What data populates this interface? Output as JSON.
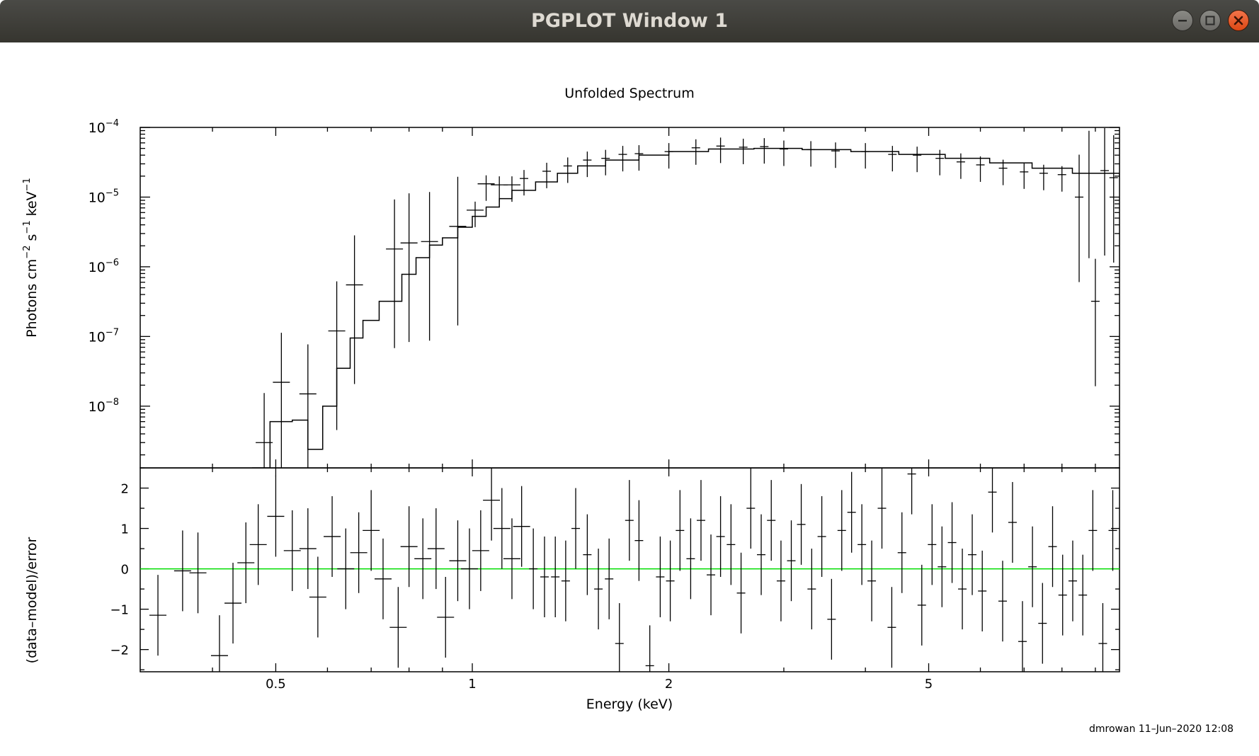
{
  "window": {
    "title": "PGPLOT Window 1",
    "controls": {
      "minimize": "minimize-icon",
      "maximize": "maximize-icon",
      "close": "close-icon"
    }
  },
  "footer": {
    "stamp": "dmrowan 11–Jun–2020 12:08"
  },
  "chart_data": [
    {
      "panel": "top",
      "type": "scatter",
      "title": "Unfolded Spectrum",
      "xlabel": "",
      "ylabel_parts": [
        "Photons cm",
        "−2",
        " s",
        "−1",
        " keV",
        "−1"
      ],
      "x_scale": "log",
      "y_scale": "log",
      "xlim": [
        0.31,
        9.8
      ],
      "ylim": [
        1.3e-09,
        0.0001
      ],
      "y_tick_exponents": [
        "−4",
        "−5",
        "−6",
        "−7",
        "−8"
      ],
      "grid": false,
      "series": [
        {
          "kind": "data",
          "points": [
            [
              0.48,
              3e-09
            ],
            [
              0.51,
              2.2e-08
            ],
            [
              0.56,
              1.5e-08
            ],
            [
              0.62,
              1.2e-07
            ],
            [
              0.66,
              5.5e-07
            ],
            [
              0.76,
              1.8e-06
            ],
            [
              0.8,
              2.2e-06
            ],
            [
              0.86,
              2.3e-06
            ],
            [
              0.95,
              3.8e-06
            ],
            [
              1.01,
              6.5e-06
            ],
            [
              1.05,
              1.55e-05
            ],
            [
              1.1,
              1.5e-05
            ],
            [
              1.15,
              1.5e-05
            ],
            [
              1.2,
              1.85e-05
            ],
            [
              1.3,
              2.35e-05
            ],
            [
              1.4,
              2.8e-05
            ],
            [
              1.5,
              3.4e-05
            ],
            [
              1.6,
              3.6e-05
            ],
            [
              1.7,
              4.1e-05
            ],
            [
              1.8,
              4.2e-05
            ],
            [
              2.0,
              4.5e-05
            ],
            [
              2.2,
              5.1e-05
            ],
            [
              2.4,
              5.4e-05
            ],
            [
              2.6,
              5.2e-05
            ],
            [
              2.8,
              5.3e-05
            ],
            [
              3.0,
              4.9e-05
            ],
            [
              3.3,
              4.8e-05
            ],
            [
              3.6,
              4.6e-05
            ],
            [
              4.0,
              4.5e-05
            ],
            [
              4.4,
              4.1e-05
            ],
            [
              4.8,
              4e-05
            ],
            [
              5.2,
              3.6e-05
            ],
            [
              5.6,
              3.2e-05
            ],
            [
              6.0,
              2.9e-05
            ],
            [
              6.5,
              2.6e-05
            ],
            [
              7.0,
              2.3e-05
            ],
            [
              7.5,
              2.2e-05
            ],
            [
              8.0,
              2.1e-05
            ],
            [
              8.5,
              1e-05
            ],
            [
              8.8,
              2.2e-05
            ],
            [
              9.0,
              3.2e-07
            ],
            [
              9.3,
              2.4e-05
            ],
            [
              9.6,
              1.9e-05
            ]
          ]
        },
        {
          "kind": "model",
          "steps": [
            [
              0.46,
              1.3e-09
            ],
            [
              0.49,
              6e-09
            ],
            [
              0.53,
              6.3e-09
            ],
            [
              0.56,
              2.4e-09
            ],
            [
              0.59,
              1e-08
            ],
            [
              0.62,
              3.5e-08
            ],
            [
              0.65,
              9.5e-08
            ],
            [
              0.68,
              1.7e-07
            ],
            [
              0.72,
              3.2e-07
            ],
            [
              0.78,
              7.8e-07
            ],
            [
              0.82,
              1.35e-06
            ],
            [
              0.86,
              2.05e-06
            ],
            [
              0.9,
              2.6e-06
            ],
            [
              0.95,
              3.7e-06
            ],
            [
              1.0,
              5.3e-06
            ],
            [
              1.05,
              7.2e-06
            ],
            [
              1.1,
              9.5e-06
            ],
            [
              1.15,
              1.25e-05
            ],
            [
              1.25,
              1.65e-05
            ],
            [
              1.35,
              2.2e-05
            ],
            [
              1.45,
              2.8e-05
            ],
            [
              1.6,
              3.4e-05
            ],
            [
              1.8,
              4e-05
            ],
            [
              2.0,
              4.5e-05
            ],
            [
              2.3,
              4.9e-05
            ],
            [
              2.7,
              5e-05
            ],
            [
              3.2,
              4.8e-05
            ],
            [
              3.8,
              4.5e-05
            ],
            [
              4.5,
              4.1e-05
            ],
            [
              5.3,
              3.6e-05
            ],
            [
              6.2,
              3.1e-05
            ],
            [
              7.2,
              2.6e-05
            ],
            [
              8.3,
              2.2e-05
            ],
            [
              9.8,
              1.9e-05
            ]
          ]
        }
      ]
    },
    {
      "panel": "bottom",
      "type": "scatter",
      "xlabel": "Energy (keV)",
      "ylabel": "(data–model)/error",
      "x_scale": "log",
      "xlim": [
        0.31,
        9.8
      ],
      "ylim": [
        -2.55,
        2.5
      ],
      "x_ticks": [
        {
          "value": 0.5,
          "label": "0.5"
        },
        {
          "value": 1,
          "label": "1"
        },
        {
          "value": 2,
          "label": "2"
        },
        {
          "value": 5,
          "label": "5"
        }
      ],
      "y_ticks": [
        {
          "value": 2,
          "label": "2"
        },
        {
          "value": 1,
          "label": "1"
        },
        {
          "value": 0,
          "label": "0"
        },
        {
          "value": -1,
          "label": "−1"
        },
        {
          "value": -2,
          "label": "−2"
        }
      ],
      "zero_line_color": "#00dd00",
      "grid": false,
      "points": [
        [
          0.33,
          -1.15
        ],
        [
          0.36,
          -0.05
        ],
        [
          0.38,
          -0.1
        ],
        [
          0.41,
          -2.15
        ],
        [
          0.43,
          -0.85
        ],
        [
          0.45,
          0.15
        ],
        [
          0.47,
          0.6
        ],
        [
          0.5,
          1.3
        ],
        [
          0.53,
          0.45
        ],
        [
          0.56,
          0.5
        ],
        [
          0.58,
          -0.7
        ],
        [
          0.61,
          0.8
        ],
        [
          0.64,
          0.0
        ],
        [
          0.67,
          0.4
        ],
        [
          0.7,
          0.95
        ],
        [
          0.73,
          -0.25
        ],
        [
          0.77,
          -1.45
        ],
        [
          0.8,
          0.55
        ],
        [
          0.84,
          0.25
        ],
        [
          0.88,
          0.5
        ],
        [
          0.91,
          -1.2
        ],
        [
          0.95,
          0.2
        ],
        [
          0.99,
          0.0
        ],
        [
          1.03,
          0.45
        ],
        [
          1.07,
          1.7
        ],
        [
          1.11,
          1.0
        ],
        [
          1.15,
          0.25
        ],
        [
          1.19,
          1.05
        ],
        [
          1.24,
          0.0
        ],
        [
          1.29,
          -0.2
        ],
        [
          1.34,
          -0.2
        ],
        [
          1.39,
          -0.3
        ],
        [
          1.44,
          1.0
        ],
        [
          1.5,
          0.35
        ],
        [
          1.56,
          -0.5
        ],
        [
          1.62,
          -0.25
        ],
        [
          1.68,
          -1.85
        ],
        [
          1.74,
          1.2
        ],
        [
          1.8,
          0.7
        ],
        [
          1.87,
          -2.4
        ],
        [
          1.94,
          -0.2
        ],
        [
          2.01,
          -0.3
        ],
        [
          2.08,
          0.95
        ],
        [
          2.16,
          0.25
        ],
        [
          2.24,
          1.2
        ],
        [
          2.32,
          -0.15
        ],
        [
          2.4,
          0.8
        ],
        [
          2.49,
          0.6
        ],
        [
          2.58,
          -0.6
        ],
        [
          2.67,
          1.5
        ],
        [
          2.77,
          0.35
        ],
        [
          2.87,
          1.2
        ],
        [
          2.97,
          -0.3
        ],
        [
          3.08,
          0.2
        ],
        [
          3.19,
          1.1
        ],
        [
          3.31,
          -0.5
        ],
        [
          3.43,
          0.8
        ],
        [
          3.55,
          -1.25
        ],
        [
          3.68,
          0.95
        ],
        [
          3.81,
          1.4
        ],
        [
          3.95,
          0.6
        ],
        [
          4.09,
          -0.3
        ],
        [
          4.24,
          1.5
        ],
        [
          4.39,
          -1.45
        ],
        [
          4.55,
          0.4
        ],
        [
          4.71,
          2.35
        ],
        [
          4.88,
          -0.9
        ],
        [
          5.06,
          0.6
        ],
        [
          5.24,
          0.05
        ],
        [
          5.43,
          0.65
        ],
        [
          5.63,
          -0.5
        ],
        [
          5.83,
          0.35
        ],
        [
          6.04,
          -0.55
        ],
        [
          6.26,
          1.9
        ],
        [
          6.49,
          -0.8
        ],
        [
          6.72,
          1.15
        ],
        [
          6.96,
          -1.8
        ],
        [
          7.21,
          0.05
        ],
        [
          7.47,
          -1.35
        ],
        [
          7.74,
          0.55
        ],
        [
          8.02,
          -0.65
        ],
        [
          8.31,
          -0.3
        ],
        [
          8.61,
          -0.65
        ],
        [
          8.92,
          0.95
        ],
        [
          9.24,
          -1.85
        ],
        [
          9.57,
          0.95
        ]
      ]
    }
  ]
}
